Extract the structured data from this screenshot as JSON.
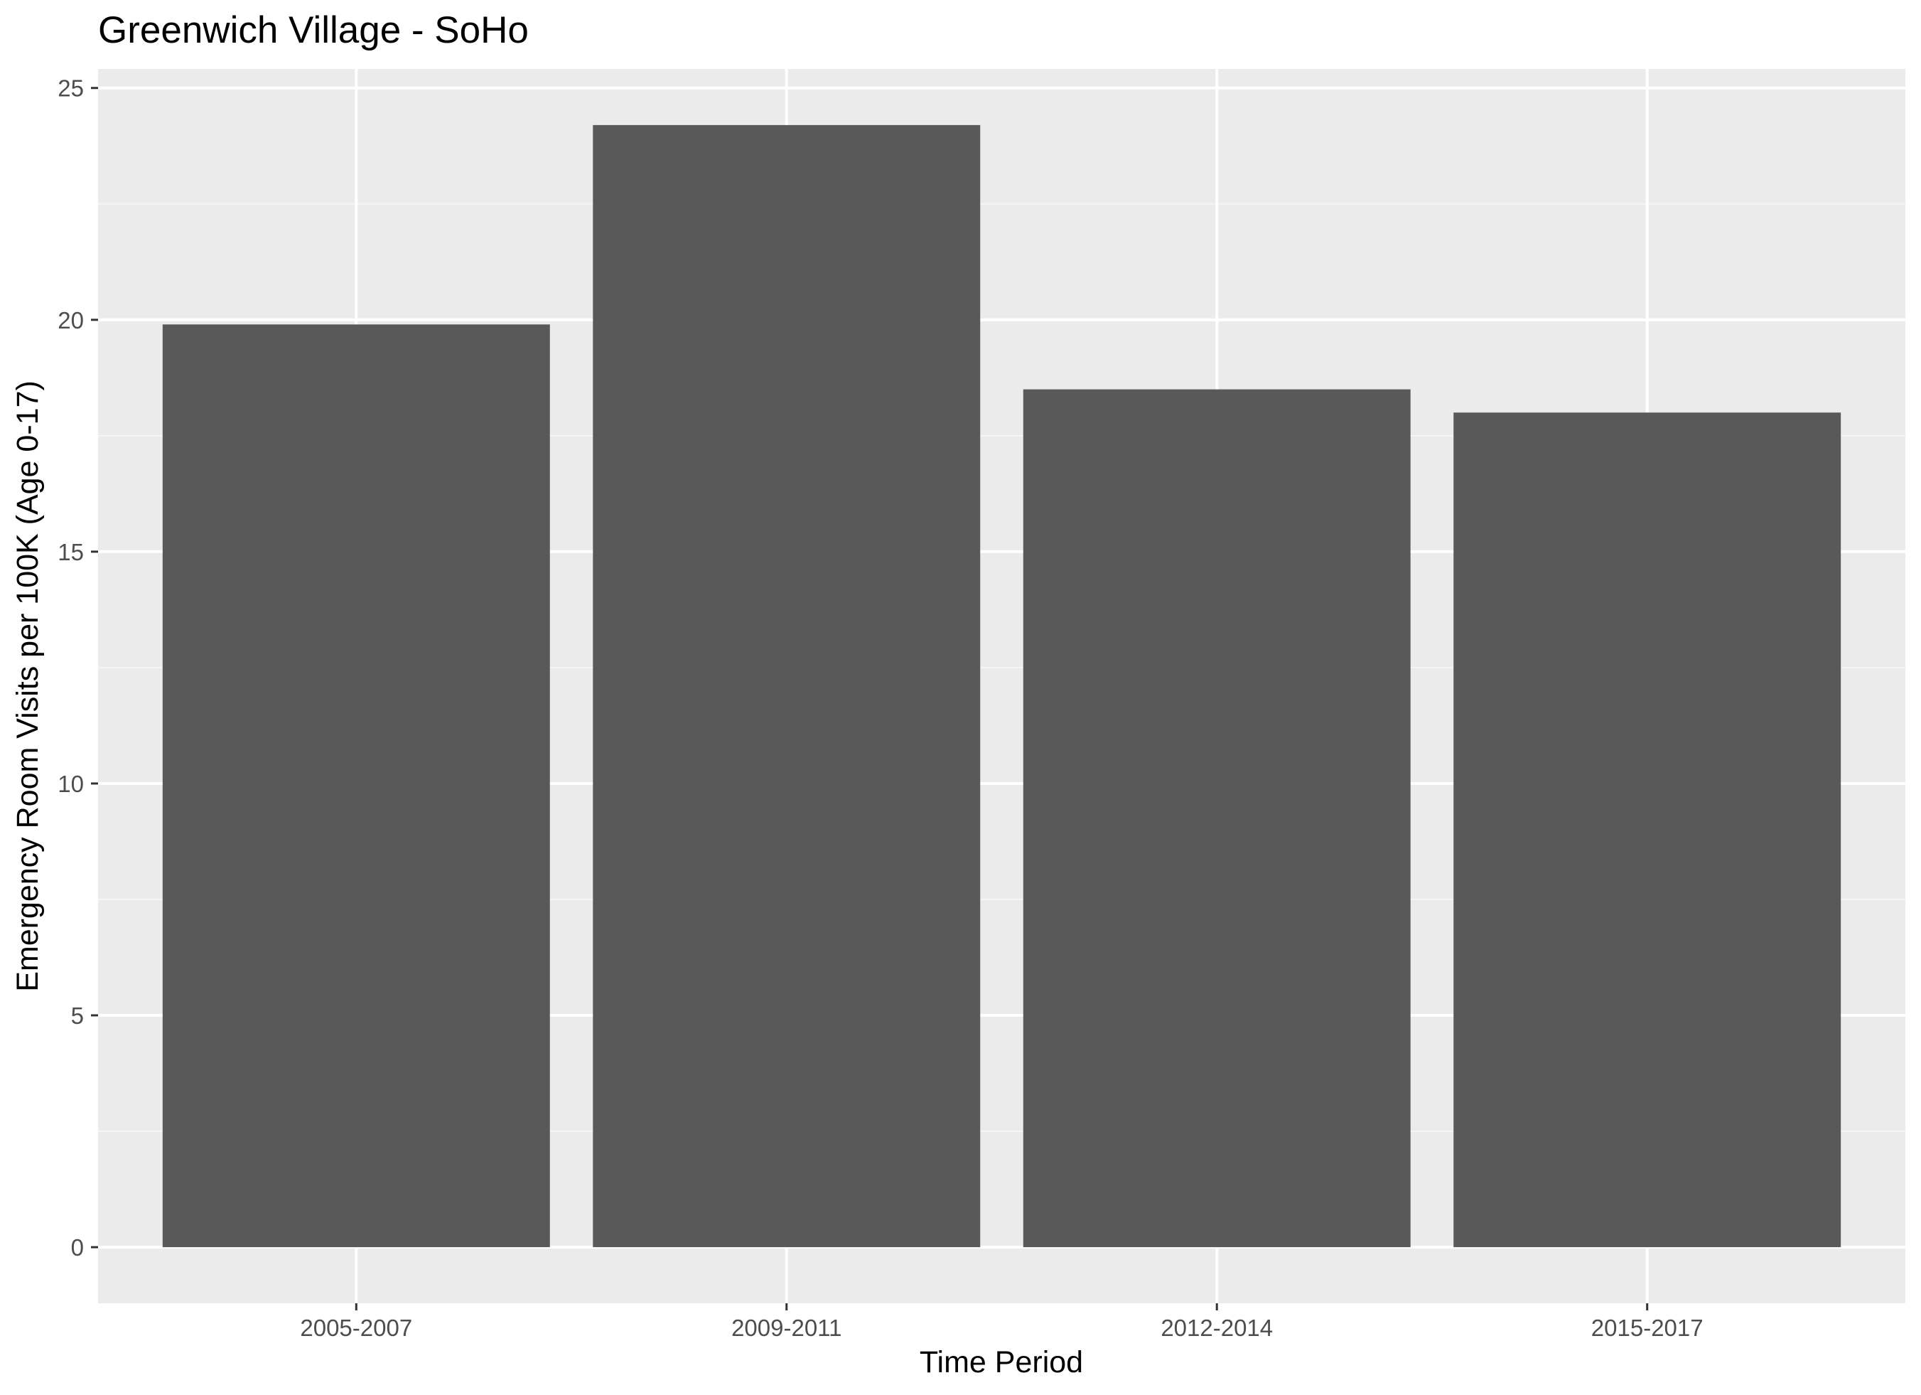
{
  "chart_data": {
    "type": "bar",
    "title": "Greenwich Village - SoHo",
    "xlabel": "Time Period",
    "ylabel": "Emergency Room Visits per 100K (Age 0-17)",
    "categories": [
      "2005-2007",
      "2009-2011",
      "2012-2014",
      "2015-2017"
    ],
    "values": [
      19.9,
      24.2,
      18.5,
      18.0
    ],
    "ylim": [
      -1.21,
      25.41
    ],
    "yticks": [
      0,
      5,
      10,
      15,
      20,
      25
    ],
    "grid": true,
    "colors": {
      "panel_background": "#EBEBEB",
      "grid_major": "#FFFFFF",
      "grid_minor": "#F5F5F5",
      "bar_fill": "#595959",
      "tick_text": "#4D4D4D",
      "tick_mark": "#333333"
    }
  }
}
